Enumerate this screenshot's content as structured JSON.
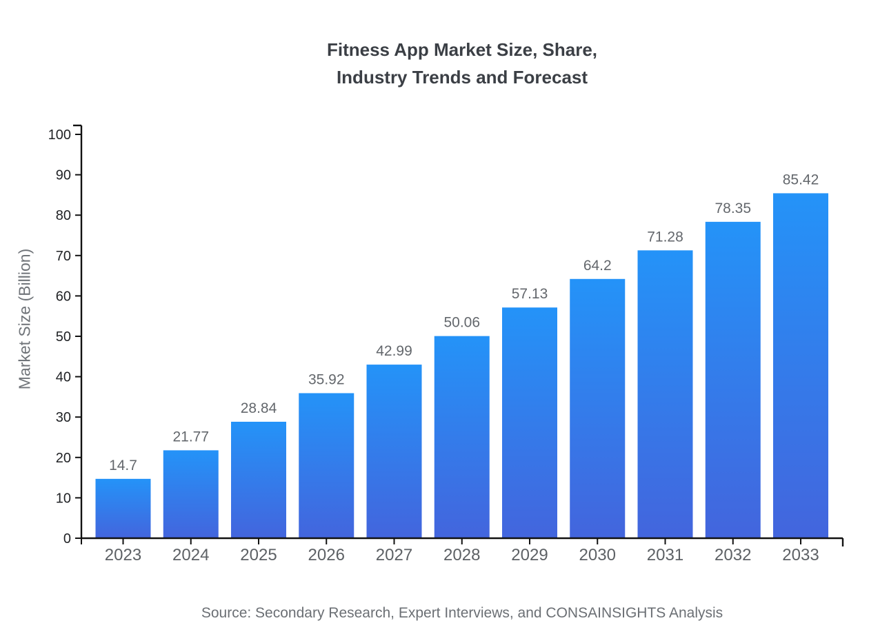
{
  "title": {
    "line1": "Fitness App Market Size, Share,",
    "line2": "Industry Trends and Forecast"
  },
  "source_note": "Source: Secondary Research, Expert Interviews, and CONSAINSIGHTS Analysis",
  "chart_data": {
    "type": "bar",
    "title": "Fitness App Market Size, Share, Industry Trends and Forecast",
    "categories": [
      "2023",
      "2024",
      "2025",
      "2026",
      "2027",
      "2028",
      "2029",
      "2030",
      "2031",
      "2032",
      "2033"
    ],
    "values": [
      14.7,
      21.77,
      28.84,
      35.92,
      42.99,
      50.06,
      57.13,
      64.2,
      71.28,
      78.35,
      85.42
    ],
    "value_labels": [
      "14.7",
      "21.77",
      "28.84",
      "35.92",
      "42.99",
      "50.06",
      "57.13",
      "64.2",
      "71.28",
      "78.35",
      "85.42"
    ],
    "xlabel": "",
    "ylabel": "Market Size (Billion)",
    "ylim": [
      0,
      100
    ],
    "ytick_step": 10,
    "ytick_labels": [
      "0",
      "10",
      "20",
      "30",
      "40",
      "50",
      "60",
      "70",
      "80",
      "90",
      "100"
    ],
    "grid": false,
    "legend": "none",
    "colors": {
      "bar_gradient_top": "#2493f8",
      "bar_gradient_bottom": "#4365dd",
      "axis": "#111111",
      "title_text": "#3b3f45",
      "tick_text": "#1f2124",
      "category_text": "#5d6165",
      "value_text": "#63676c",
      "source_text": "#6b6f74"
    }
  }
}
